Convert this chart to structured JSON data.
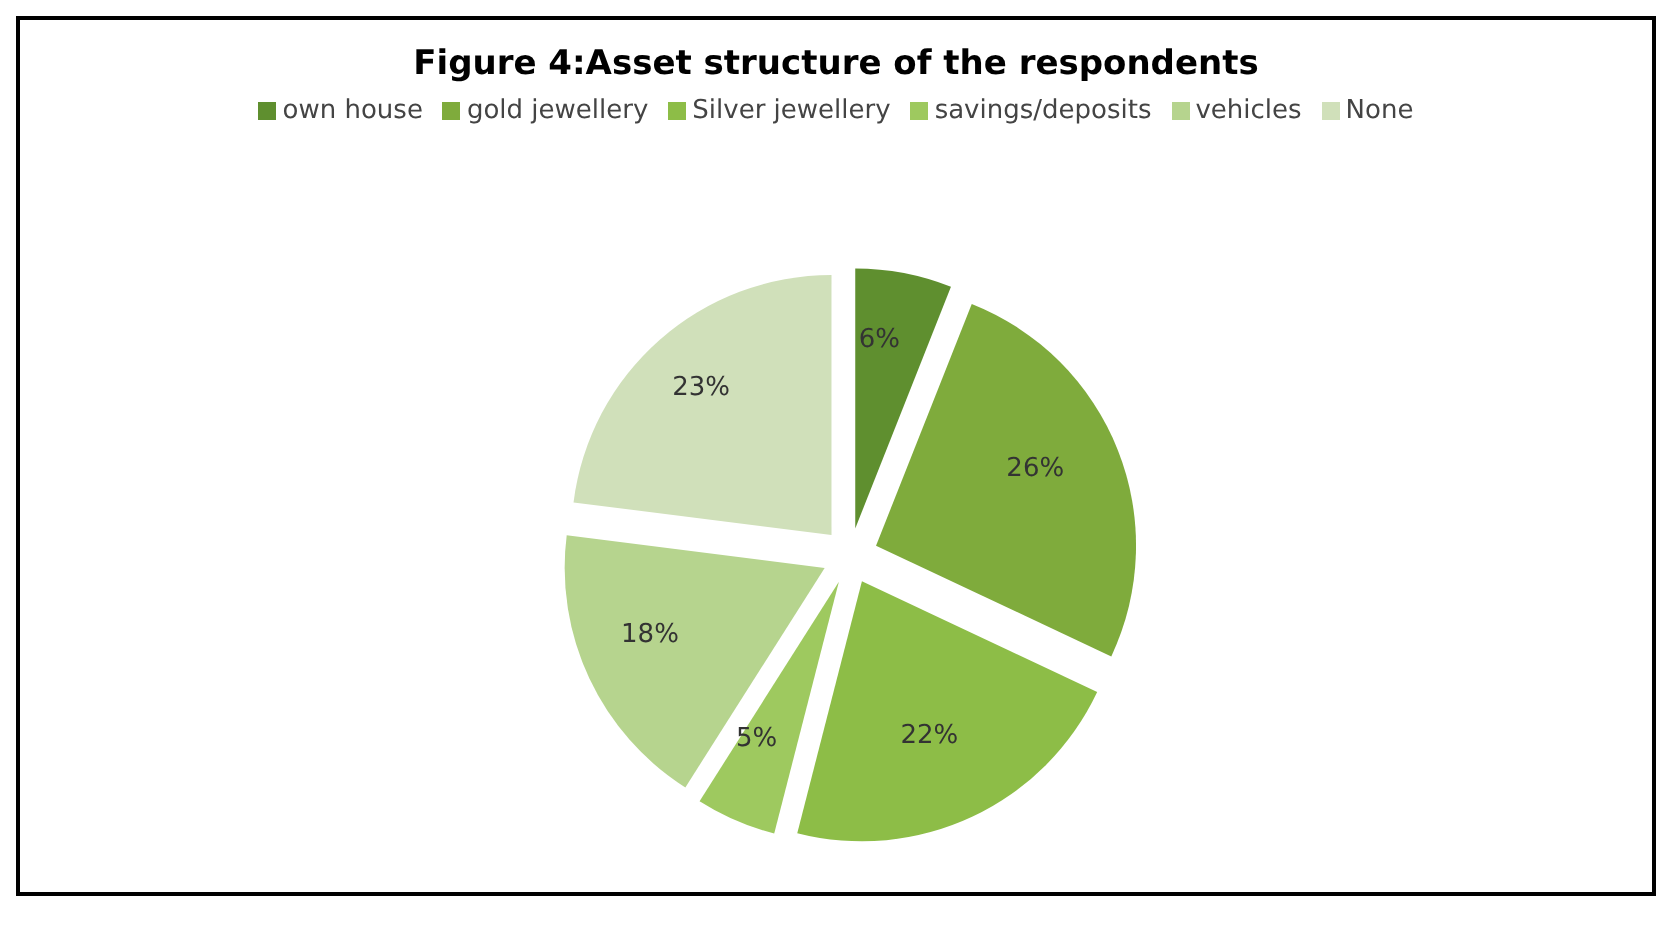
{
  "chart_data": {
    "type": "pie",
    "title": "Figure 4:Asset structure of the respondents",
    "categories": [
      "own house",
      "gold jewellery",
      "Silver jewellery",
      "savings/deposits",
      "vehicles",
      "None"
    ],
    "values": [
      6,
      26,
      22,
      5,
      18,
      23
    ],
    "value_labels": [
      "6%",
      "26%",
      "22%",
      "5%",
      "18%",
      "23%"
    ],
    "colors": [
      "#5f8f2f",
      "#7fab3c",
      "#8dbd47",
      "#9ec95f",
      "#b6d48e",
      "#d0e0ba"
    ],
    "legend": "top"
  }
}
